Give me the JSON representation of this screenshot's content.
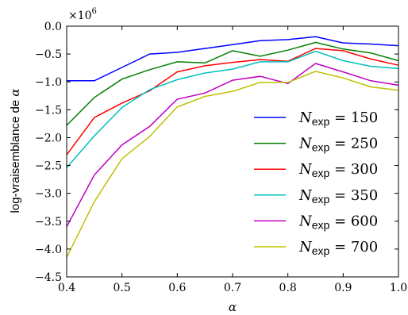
{
  "chart_data": {
    "type": "line",
    "xlabel": "α",
    "ylabel_main": "log-vraisemblance de ",
    "ylabel_var": "α",
    "y_offset_base": "×10",
    "y_offset_exp": "6",
    "xlim": [
      0.4,
      1.0
    ],
    "ylim": [
      -4.5,
      0.0
    ],
    "x_ticks": [
      0.4,
      0.5,
      0.6,
      0.7,
      0.8,
      0.9,
      1.0
    ],
    "x_tick_labels": [
      "0.4",
      "0.5",
      "0.6",
      "0.7",
      "0.8",
      "0.9",
      "1.0"
    ],
    "y_ticks": [
      0.0,
      -0.5,
      -1.0,
      -1.5,
      -2.0,
      -2.5,
      -3.0,
      -3.5,
      -4.0,
      -4.5
    ],
    "y_tick_labels": [
      "0.0",
      "−0.5",
      "−1.0",
      "−1.5",
      "−2.0",
      "−2.5",
      "−3.0",
      "−3.5",
      "−4.0",
      "−4.5"
    ],
    "grid": false,
    "legend_position": "lower-right",
    "x": [
      0.4,
      0.45,
      0.5,
      0.55,
      0.6,
      0.65,
      0.7,
      0.75,
      0.8,
      0.85,
      0.9,
      0.95,
      1.0
    ],
    "series": [
      {
        "name": "N_exp = 150",
        "legend_sub": "exp",
        "legend_value": "150",
        "color": "#0000ff",
        "values": [
          -0.98,
          -0.98,
          -0.74,
          -0.5,
          -0.47,
          -0.4,
          -0.33,
          -0.26,
          -0.24,
          -0.19,
          -0.3,
          -0.32,
          -0.35
        ]
      },
      {
        "name": "N_exp = 250",
        "legend_sub": "exp",
        "legend_value": "250",
        "color": "#008000",
        "values": [
          -1.78,
          -1.28,
          -0.95,
          -0.78,
          -0.64,
          -0.66,
          -0.44,
          -0.54,
          -0.43,
          -0.29,
          -0.41,
          -0.48,
          -0.62
        ]
      },
      {
        "name": "N_exp = 300",
        "legend_sub": "exp",
        "legend_value": "300",
        "color": "#ff0000",
        "values": [
          -2.31,
          -1.64,
          -1.38,
          -1.16,
          -0.82,
          -0.71,
          -0.65,
          -0.6,
          -0.63,
          -0.4,
          -0.44,
          -0.59,
          -0.7
        ]
      },
      {
        "name": "N_exp = 350",
        "legend_sub": "exp",
        "legend_value": "350",
        "color": "#00bfbf",
        "values": [
          -2.54,
          -1.97,
          -1.46,
          -1.14,
          -0.96,
          -0.84,
          -0.77,
          -0.64,
          -0.64,
          -0.45,
          -0.62,
          -0.72,
          -0.76
        ]
      },
      {
        "name": "N_exp = 600",
        "legend_sub": "exp",
        "legend_value": "600",
        "color": "#bf00bf",
        "values": [
          -3.6,
          -2.67,
          -2.13,
          -1.8,
          -1.31,
          -1.2,
          -0.97,
          -0.9,
          -1.03,
          -0.67,
          -0.82,
          -0.98,
          -1.06
        ]
      },
      {
        "name": "N_exp = 700",
        "legend_sub": "exp",
        "legend_value": "700",
        "color": "#bfbf00",
        "values": [
          -4.15,
          -3.15,
          -2.38,
          -1.98,
          -1.45,
          -1.26,
          -1.17,
          -1.01,
          -1.01,
          -0.81,
          -0.93,
          -1.09,
          -1.15
        ]
      }
    ]
  }
}
